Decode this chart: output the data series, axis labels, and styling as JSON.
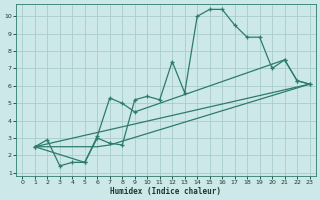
{
  "xlabel": "Humidex (Indice chaleur)",
  "bg_color": "#cce8e8",
  "grid_color": "#aacccc",
  "line_color": "#2d7b6e",
  "xlim": [
    -0.5,
    23.5
  ],
  "ylim": [
    0.8,
    10.7
  ],
  "xticks": [
    0,
    1,
    2,
    3,
    4,
    5,
    6,
    7,
    8,
    9,
    10,
    11,
    12,
    13,
    14,
    15,
    16,
    17,
    18,
    19,
    20,
    21,
    22,
    23
  ],
  "yticks": [
    1,
    2,
    3,
    4,
    5,
    6,
    7,
    8,
    9,
    10
  ],
  "line1_x": [
    1,
    2,
    3,
    4,
    5,
    6,
    7,
    8,
    9,
    10,
    11,
    12,
    13,
    14,
    15,
    16,
    17,
    18,
    19,
    20,
    21,
    22,
    23
  ],
  "line1_y": [
    2.5,
    2.9,
    1.4,
    1.6,
    1.6,
    3.0,
    2.7,
    2.6,
    5.2,
    5.4,
    5.2,
    7.4,
    5.6,
    10.0,
    10.4,
    10.4,
    9.5,
    8.8,
    8.8,
    7.0,
    7.5,
    6.3,
    6.1
  ],
  "line2_x": [
    1,
    5,
    6,
    7,
    8,
    9,
    21,
    22,
    23
  ],
  "line2_y": [
    2.5,
    1.6,
    3.1,
    5.3,
    5.0,
    4.5,
    7.5,
    6.3,
    6.1
  ],
  "line3_x": [
    1,
    23
  ],
  "line3_y": [
    2.5,
    6.1
  ],
  "line4_x": [
    1,
    6,
    7,
    23
  ],
  "line4_y": [
    2.5,
    2.5,
    2.6,
    6.1
  ]
}
